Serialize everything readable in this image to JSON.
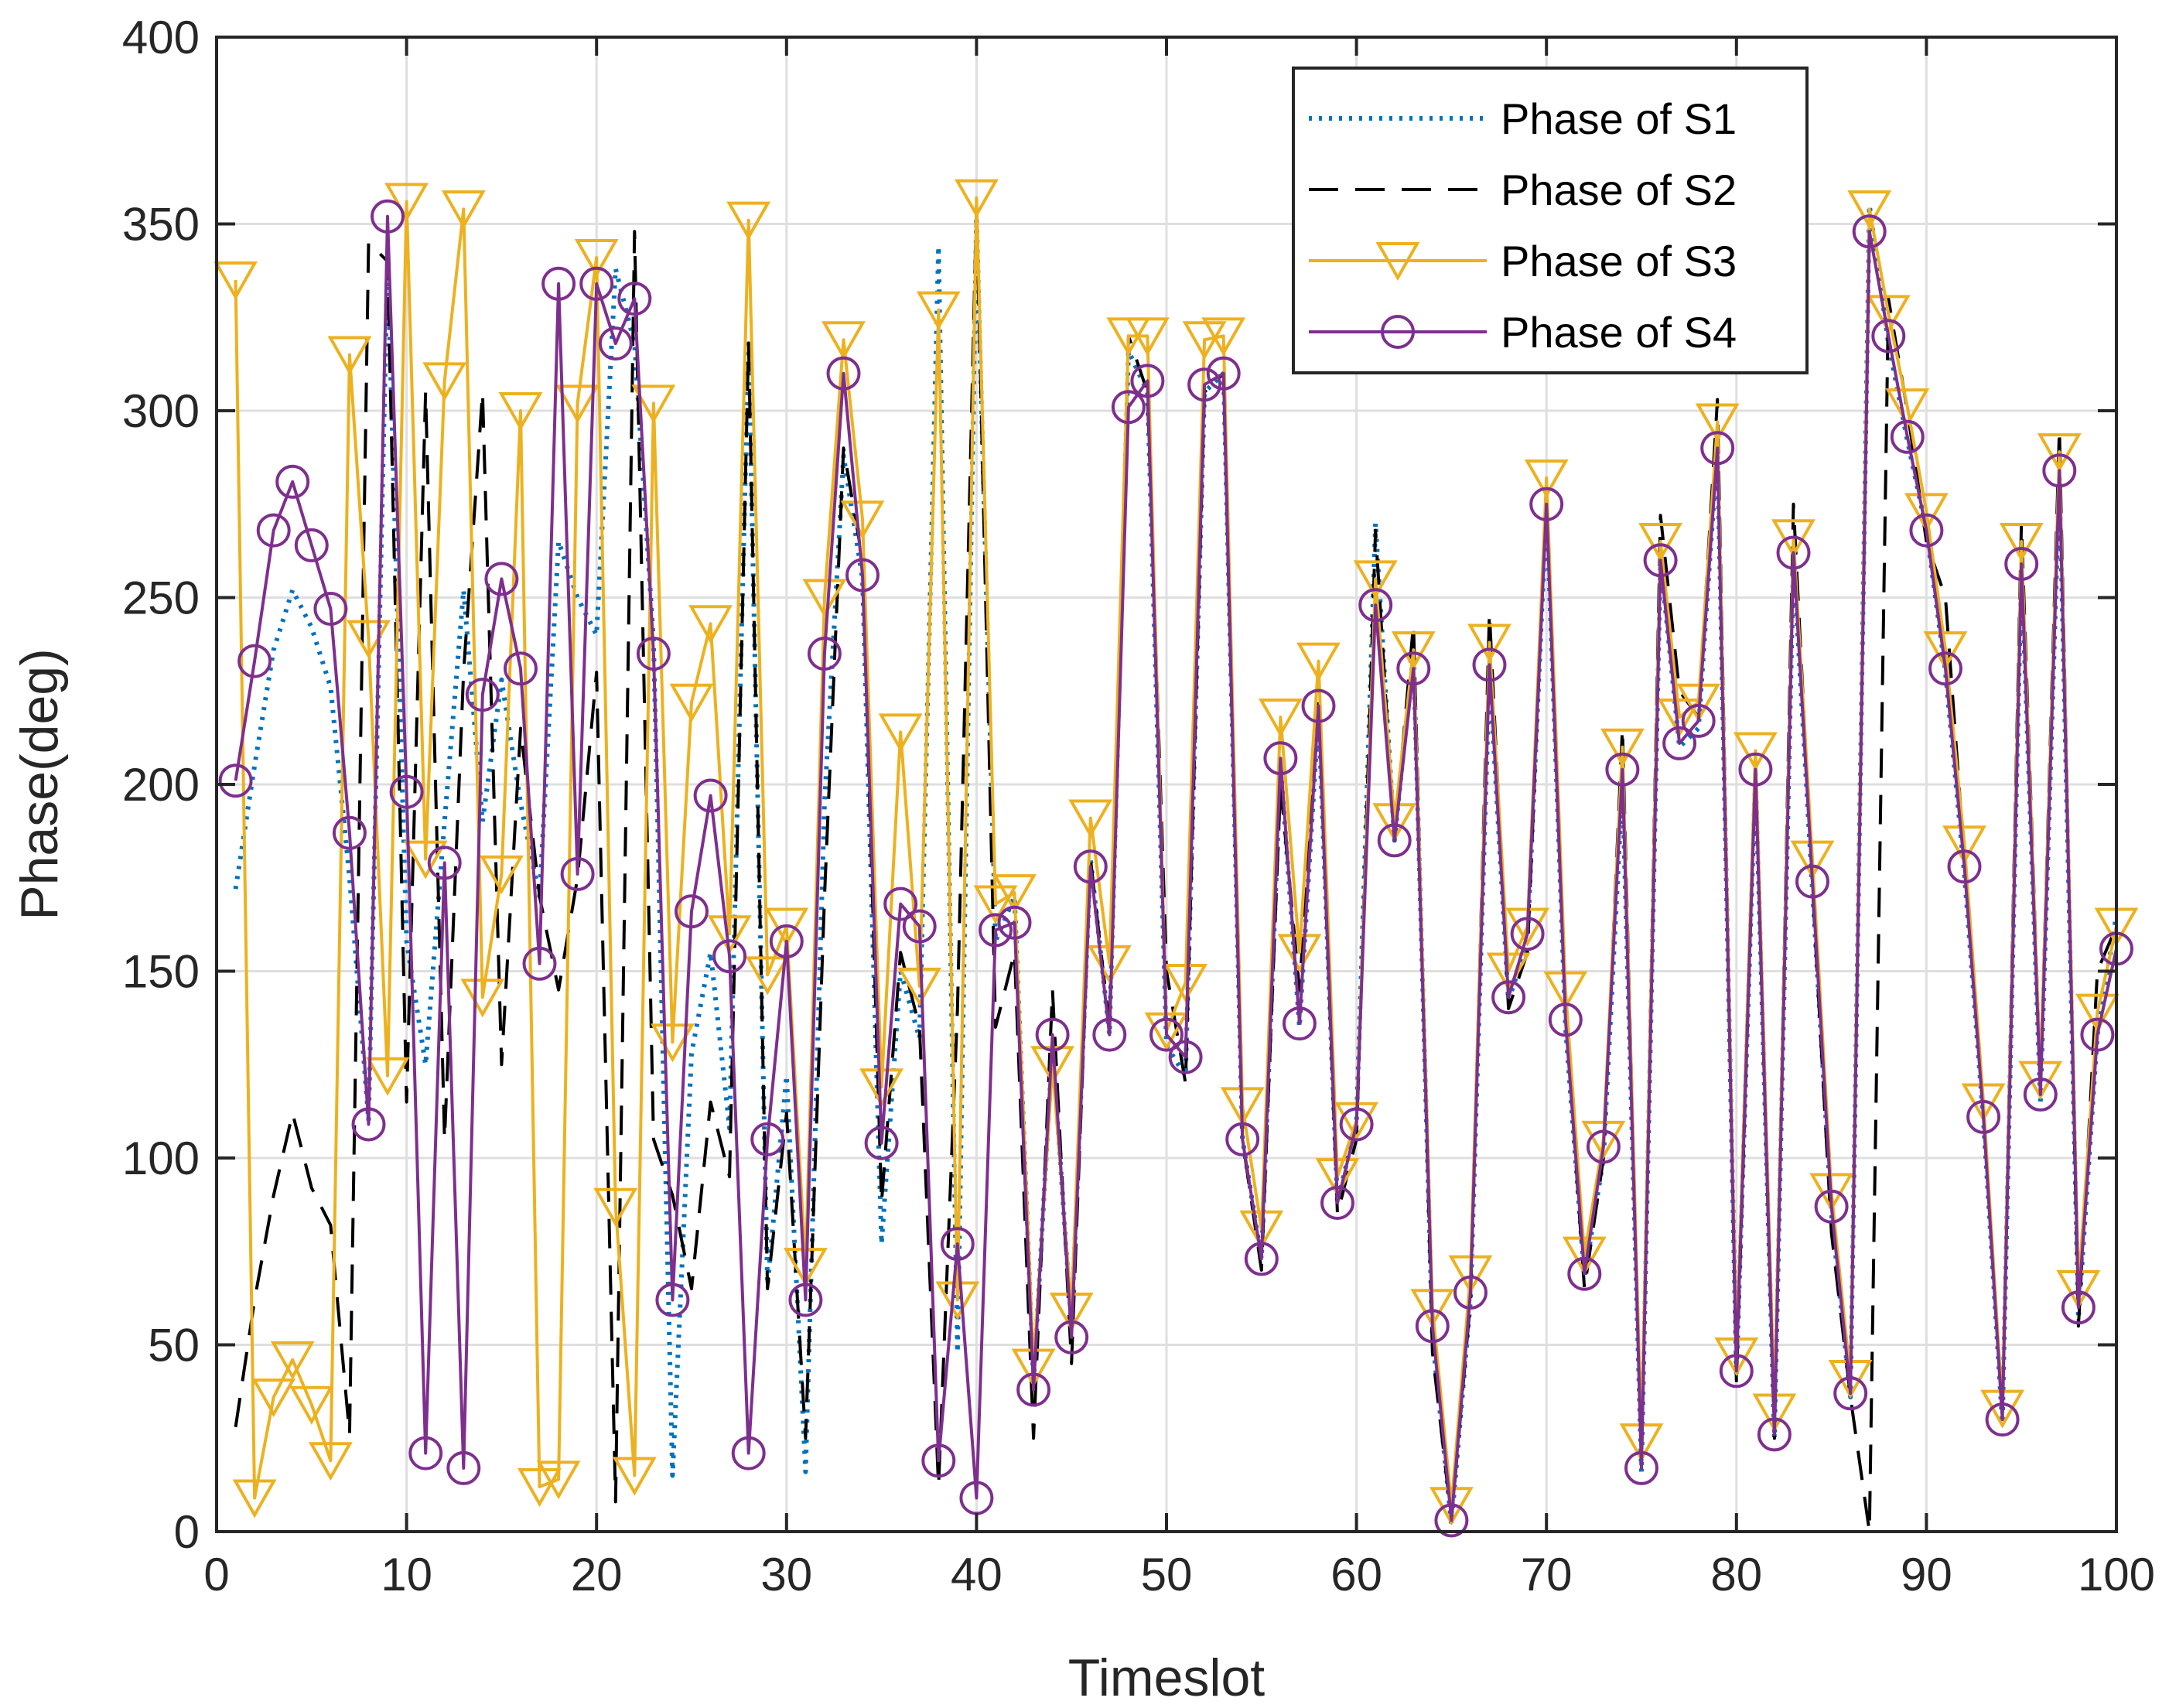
{
  "chart_data": {
    "type": "line",
    "title": "",
    "xlabel": "Timeslot",
    "ylabel": "Phase(deg)",
    "xlim": [
      0,
      100
    ],
    "ylim": [
      0,
      400
    ],
    "xticks": [
      0,
      10,
      20,
      30,
      40,
      50,
      60,
      70,
      80,
      90,
      100
    ],
    "yticks": [
      0,
      50,
      100,
      150,
      200,
      250,
      300,
      350,
      400
    ],
    "grid": true,
    "legend_position": "top-right",
    "x": [
      1,
      2,
      3,
      4,
      5,
      6,
      7,
      8,
      9,
      10,
      11,
      12,
      13,
      14,
      15,
      16,
      17,
      18,
      19,
      20,
      21,
      22,
      23,
      24,
      25,
      26,
      27,
      28,
      29,
      30,
      31,
      32,
      33,
      34,
      35,
      36,
      37,
      38,
      39,
      40,
      41,
      42,
      43,
      44,
      45,
      46,
      47,
      48,
      49,
      50,
      51,
      52,
      53,
      54,
      55,
      56,
      57,
      58,
      59,
      60,
      61,
      62,
      63,
      64,
      65,
      66,
      67,
      68,
      69,
      70,
      71,
      72,
      73,
      74,
      75,
      76,
      77,
      78,
      79,
      80,
      81,
      82,
      83,
      84,
      85,
      86,
      87,
      88,
      89,
      90,
      91,
      92,
      93,
      94,
      95,
      96,
      97,
      98,
      99,
      100
    ],
    "series": [
      {
        "name": "Phase of S1",
        "style": "dotted",
        "color": "#0072BD",
        "marker": "none",
        "values": [
          172,
          205,
          236,
          252,
          242,
          226,
          175,
          110,
          340,
          158,
          125,
          190,
          252,
          190,
          228,
          195,
          170,
          265,
          250,
          240,
          338,
          318,
          238,
          15,
          128,
          155,
          108,
          318,
          66,
          122,
          16,
          195,
          288,
          255,
          77,
          150,
          132,
          344,
          48,
          352,
          158,
          170,
          40,
          130,
          55,
          180,
          133,
          316,
          305,
          130,
          122,
          305,
          310,
          105,
          73,
          205,
          135,
          219,
          88,
          110,
          270,
          185,
          235,
          52,
          2,
          62,
          230,
          142,
          158,
          275,
          135,
          68,
          100,
          200,
          16,
          260,
          210,
          215,
          290,
          42,
          203,
          25,
          260,
          172,
          85,
          36,
          355,
          318,
          292,
          268,
          230,
          176,
          110,
          29,
          258,
          115,
          282,
          57,
          133,
          165
        ]
      },
      {
        "name": "Phase of S2",
        "style": "dashed",
        "color": "#000000",
        "marker": "none",
        "values": [
          28,
          62,
          90,
          112,
          92,
          82,
          26,
          345,
          340,
          115,
          305,
          105,
          230,
          305,
          125,
          215,
          170,
          145,
          175,
          230,
          8,
          348,
          105,
          90,
          65,
          115,
          95,
          318,
          65,
          112,
          25,
          170,
          290,
          260,
          88,
          155,
          135,
          12,
          140,
          355,
          135,
          155,
          25,
          145,
          45,
          180,
          135,
          320,
          305,
          150,
          120,
          305,
          310,
          105,
          70,
          200,
          145,
          222,
          85,
          105,
          268,
          185,
          243,
          48,
          3,
          62,
          246,
          140,
          155,
          278,
          140,
          65,
          100,
          215,
          18,
          272,
          225,
          218,
          303,
          40,
          205,
          25,
          275,
          173,
          80,
          36,
          0,
          330,
          300,
          265,
          250,
          180,
          112,
          32,
          270,
          120,
          295,
          55,
          150,
          162
        ]
      },
      {
        "name": "Phase of S3",
        "style": "solid",
        "color": "#EDB120",
        "marker": "triangle-down",
        "values": [
          335,
          9,
          36,
          46,
          34,
          19,
          315,
          239,
          122,
          356,
          180,
          308,
          354,
          143,
          176,
          300,
          12,
          14,
          302,
          341,
          87,
          15,
          302,
          131,
          222,
          243,
          160,
          351,
          149,
          162,
          71,
          250,
          319,
          271,
          119,
          214,
          146,
          327,
          62,
          357,
          168,
          171,
          44,
          125,
          59,
          191,
          152,
          320,
          320,
          134,
          147,
          319,
          320,
          114,
          81,
          218,
          155,
          233,
          95,
          110,
          255,
          190,
          236,
          60,
          7,
          69,
          238,
          150,
          162,
          282,
          145,
          74,
          105,
          210,
          24,
          265,
          218,
          222,
          297,
          47,
          209,
          32,
          266,
          180,
          91,
          41,
          354,
          326,
          301,
          273,
          236,
          184,
          115,
          33,
          265,
          121,
          289,
          65,
          139,
          162
        ]
      },
      {
        "name": "Phase of S4",
        "style": "solid",
        "color": "#7E2F8E",
        "marker": "circle",
        "values": [
          201,
          233,
          268,
          281,
          264,
          247,
          187,
          109,
          352,
          198,
          21,
          179,
          17,
          224,
          255,
          231,
          152,
          334,
          176,
          334,
          318,
          330,
          235,
          62,
          166,
          197,
          154,
          21,
          105,
          158,
          62,
          235,
          310,
          256,
          104,
          168,
          162,
          19,
          77,
          9,
          161,
          163,
          38,
          133,
          52,
          178,
          133,
          301,
          308,
          133,
          127,
          307,
          310,
          105,
          73,
          207,
          136,
          221,
          88,
          109,
          248,
          185,
          231,
          55,
          3,
          64,
          232,
          143,
          160,
          275,
          137,
          69,
          103,
          204,
          17,
          260,
          211,
          217,
          290,
          43,
          204,
          26,
          262,
          174,
          87,
          37,
          348,
          320,
          293,
          268,
          231,
          178,
          111,
          30,
          259,
          117,
          284,
          60,
          133,
          156
        ]
      }
    ]
  }
}
